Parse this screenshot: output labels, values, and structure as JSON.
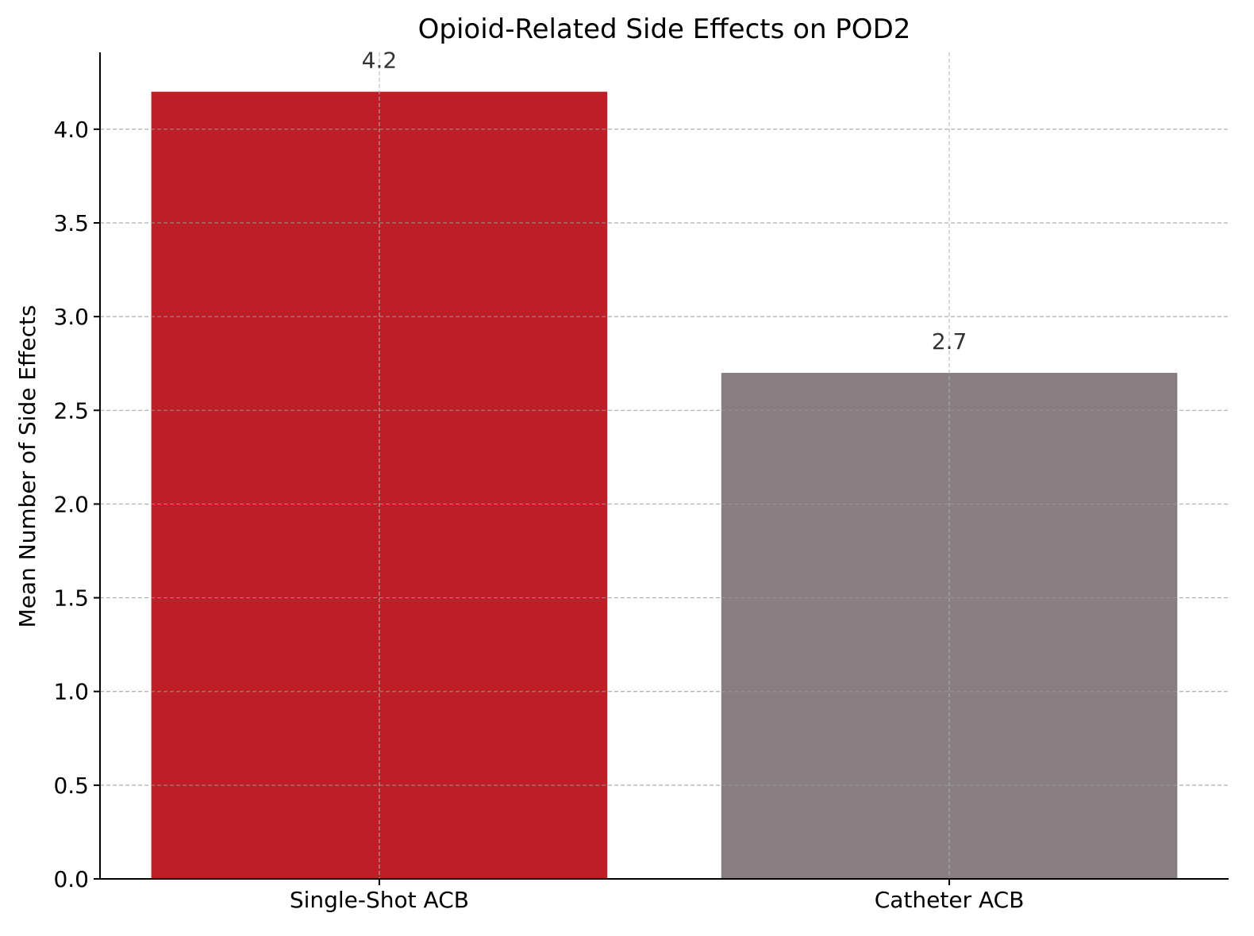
{
  "chart_data": {
    "type": "bar",
    "title": "Opioid-Related Side Effects on POD2",
    "xlabel": "",
    "ylabel": "Mean Number of Side Effects",
    "categories": [
      "Single-Shot ACB",
      "Catheter ACB"
    ],
    "values": [
      4.2,
      2.7
    ],
    "data_labels": [
      "4.2",
      "2.7"
    ],
    "colors": [
      "#BE1F26",
      "#887D80"
    ],
    "ylim": [
      0,
      4.41
    ],
    "yticks": [
      0.0,
      0.5,
      1.0,
      1.5,
      2.0,
      2.5,
      3.0,
      3.5,
      4.0
    ],
    "ytick_labels": [
      "0.0",
      "0.5",
      "1.0",
      "1.5",
      "2.0",
      "2.5",
      "3.0",
      "3.5",
      "4.0"
    ],
    "grid": true,
    "legend": "none"
  }
}
